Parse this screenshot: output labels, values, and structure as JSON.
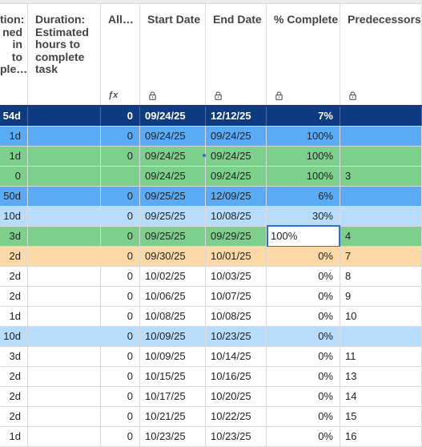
{
  "columns": [
    {
      "key": "c0",
      "title": "tion:\nned\nin\nto\nple…",
      "icon": ""
    },
    {
      "key": "c1",
      "title": "Duration:\nEstimated\nhours to\ncomplete\ntask",
      "icon": ""
    },
    {
      "key": "c2",
      "title": "All…",
      "icon": "fx-icon"
    },
    {
      "key": "c3",
      "title": "Start Date",
      "icon": "lock-icon"
    },
    {
      "key": "c4",
      "title": "End Date",
      "icon": "lock-icon"
    },
    {
      "key": "c5",
      "title": "% Complete",
      "icon": "lock-icon"
    },
    {
      "key": "c6",
      "title": "Predecessors",
      "icon": "lock-icon"
    }
  ],
  "colors": {
    "navy": "#0e3a82",
    "blue": "#5aabf6",
    "green": "#7dd08c",
    "lightblue": "#b8dcfb",
    "orange": "#fdd9a8",
    "white": "#ffffff",
    "selected_blue": "#2f6fdc"
  },
  "rows": [
    {
      "style": "navy",
      "c0": "54d",
      "c1": "",
      "c2": "0",
      "c3": "09/24/25",
      "c4": "12/12/25",
      "c5": "7%",
      "c6": ""
    },
    {
      "style": "blue",
      "c0": "1d",
      "c1": "",
      "c2": "0",
      "c3": "09/24/25",
      "c4": "09/24/25",
      "c5": "100%",
      "c6": ""
    },
    {
      "style": "green",
      "c0": "1d",
      "c1": "",
      "c2": "0",
      "c3": "09/24/25",
      "c4": "09/24/25",
      "c5": "100%",
      "c6": ""
    },
    {
      "style": "green",
      "c0": "0",
      "c1": "",
      "c2": "",
      "c3": "09/24/25",
      "c4": "09/24/25",
      "c5": "100%",
      "c6": "3"
    },
    {
      "style": "blue",
      "c0": "50d",
      "c1": "",
      "c2": "0",
      "c3": "09/25/25",
      "c4": "12/09/25",
      "c5": "6%",
      "c6": ""
    },
    {
      "style": "lightblue",
      "c0": "10d",
      "c1": "",
      "c2": "0",
      "c3": "09/25/25",
      "c4": "10/08/25",
      "c5": "30%",
      "c6": ""
    },
    {
      "style": "green",
      "c0": "3d",
      "c1": "",
      "c2": "0",
      "c3": "09/25/25",
      "c4": "09/29/25",
      "c5": "100%",
      "c6": "4",
      "editing": true
    },
    {
      "style": "orange",
      "c0": "2d",
      "c1": "",
      "c2": "0",
      "c3": "09/30/25",
      "c4": "10/01/25",
      "c5": "0%",
      "c6": "7"
    },
    {
      "style": "white",
      "c0": "2d",
      "c1": "",
      "c2": "0",
      "c3": "10/02/25",
      "c4": "10/03/25",
      "c5": "0%",
      "c6": "8"
    },
    {
      "style": "white",
      "c0": "2d",
      "c1": "",
      "c2": "0",
      "c3": "10/06/25",
      "c4": "10/07/25",
      "c5": "0%",
      "c6": "9"
    },
    {
      "style": "white",
      "c0": "1d",
      "c1": "",
      "c2": "0",
      "c3": "10/08/25",
      "c4": "10/08/25",
      "c5": "0%",
      "c6": "10"
    },
    {
      "style": "lightblue",
      "c0": "10d",
      "c1": "",
      "c2": "0",
      "c3": "10/09/25",
      "c4": "10/23/25",
      "c5": "0%",
      "c6": ""
    },
    {
      "style": "white",
      "c0": "3d",
      "c1": "",
      "c2": "0",
      "c3": "10/09/25",
      "c4": "10/14/25",
      "c5": "0%",
      "c6": "11"
    },
    {
      "style": "white",
      "c0": "2d",
      "c1": "",
      "c2": "0",
      "c3": "10/15/25",
      "c4": "10/16/25",
      "c5": "0%",
      "c6": "13"
    },
    {
      "style": "white",
      "c0": "2d",
      "c1": "",
      "c2": "0",
      "c3": "10/17/25",
      "c4": "10/20/25",
      "c5": "0%",
      "c6": "14"
    },
    {
      "style": "white",
      "c0": "2d",
      "c1": "",
      "c2": "0",
      "c3": "10/21/25",
      "c4": "10/22/25",
      "c5": "0%",
      "c6": "15"
    },
    {
      "style": "white",
      "c0": "1d",
      "c1": "",
      "c2": "0",
      "c3": "10/23/25",
      "c4": "10/23/25",
      "c5": "0%",
      "c6": "16"
    }
  ]
}
